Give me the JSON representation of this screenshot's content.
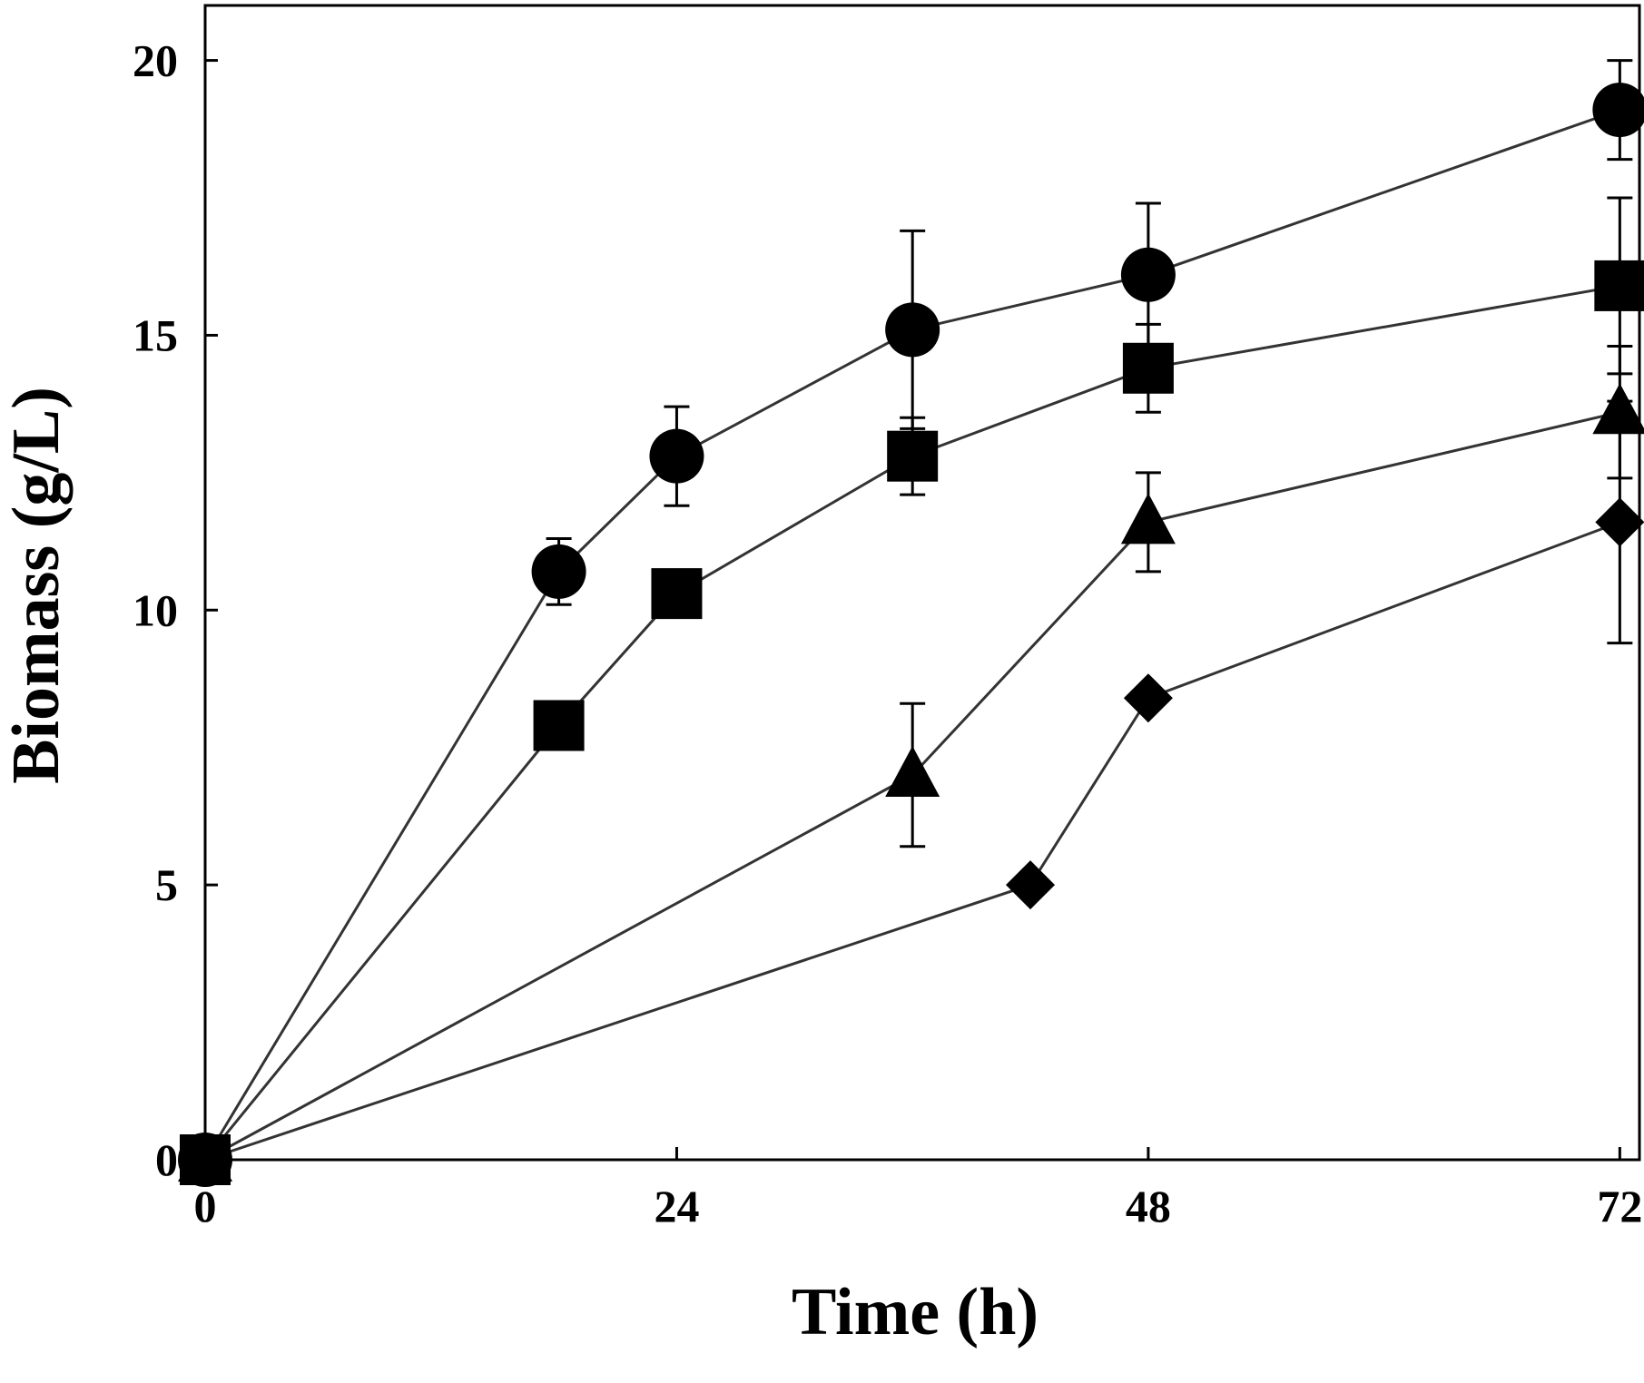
{
  "chart_data": {
    "type": "line",
    "title": "",
    "xlabel": "Time (h)",
    "ylabel": "Biomass (g/L)",
    "xlim": [
      0,
      73
    ],
    "ylim": [
      0,
      21
    ],
    "xticks": [
      0,
      24,
      48,
      72
    ],
    "yticks": [
      0,
      5,
      10,
      15,
      20
    ],
    "xtick_labels": [
      "0",
      "24",
      "48",
      "72"
    ],
    "ytick_labels": [
      "0",
      "5",
      "10",
      "15",
      "20"
    ],
    "grid": false,
    "legend": "none",
    "series": [
      {
        "name": "circle",
        "marker": "circle",
        "x": [
          0,
          18,
          24,
          36,
          48,
          72
        ],
        "y": [
          0,
          10.7,
          12.8,
          15.1,
          16.1,
          19.1
        ],
        "err": [
          0,
          0.6,
          0.9,
          1.8,
          1.3,
          0.9
        ]
      },
      {
        "name": "square",
        "marker": "square",
        "x": [
          0,
          18,
          24,
          36,
          48,
          72
        ],
        "y": [
          0,
          7.9,
          10.3,
          12.8,
          14.4,
          15.9
        ],
        "err": [
          0,
          0,
          0,
          0.7,
          0.8,
          1.6
        ]
      },
      {
        "name": "triangle",
        "marker": "triangle",
        "x": [
          0,
          36,
          48,
          72
        ],
        "y": [
          0,
          7.0,
          11.6,
          13.6
        ],
        "err": [
          0,
          1.3,
          0.9,
          1.2
        ]
      },
      {
        "name": "diamond",
        "marker": "diamond",
        "x": [
          0,
          42,
          48,
          72
        ],
        "y": [
          0,
          5.0,
          8.4,
          11.6
        ],
        "err": [
          0,
          0,
          0,
          2.2
        ]
      }
    ]
  }
}
